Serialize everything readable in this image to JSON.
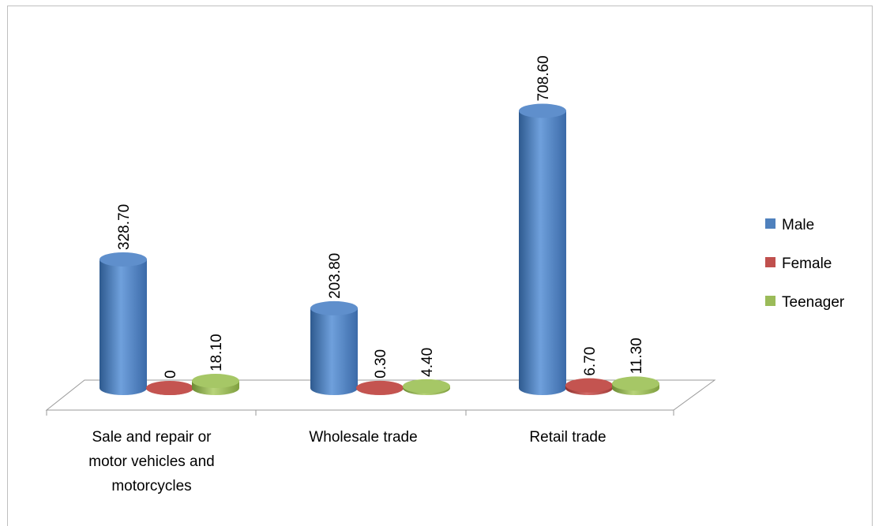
{
  "chart_data": {
    "type": "bar",
    "title": "",
    "xlabel": "",
    "ylabel": "",
    "categories": [
      [
        "Sale and repair or",
        "motor vehicles and",
        "motorcycles"
      ],
      [
        "Wholesale trade"
      ],
      [
        "Retail trade"
      ]
    ],
    "series": [
      {
        "name": "Male",
        "values": [
          328.7,
          203.8,
          708.6
        ],
        "labels": [
          "328.70",
          "203.80",
          "708.60"
        ]
      },
      {
        "name": "Female",
        "values": [
          0,
          0.3,
          6.7
        ],
        "labels": [
          "0",
          "0.30",
          "6.70"
        ]
      },
      {
        "name": "Teenager",
        "values": [
          18.1,
          4.4,
          11.3
        ],
        "labels": [
          "18.10",
          "4.40",
          "11.30"
        ]
      }
    ],
    "ylim": [
      0,
      750
    ],
    "grid": false,
    "legend_position": "right",
    "style": "3d-cylinder",
    "colors": {
      "Male": "#4f81bd",
      "Female": "#c0504d",
      "Teenager": "#9bbb59"
    }
  }
}
